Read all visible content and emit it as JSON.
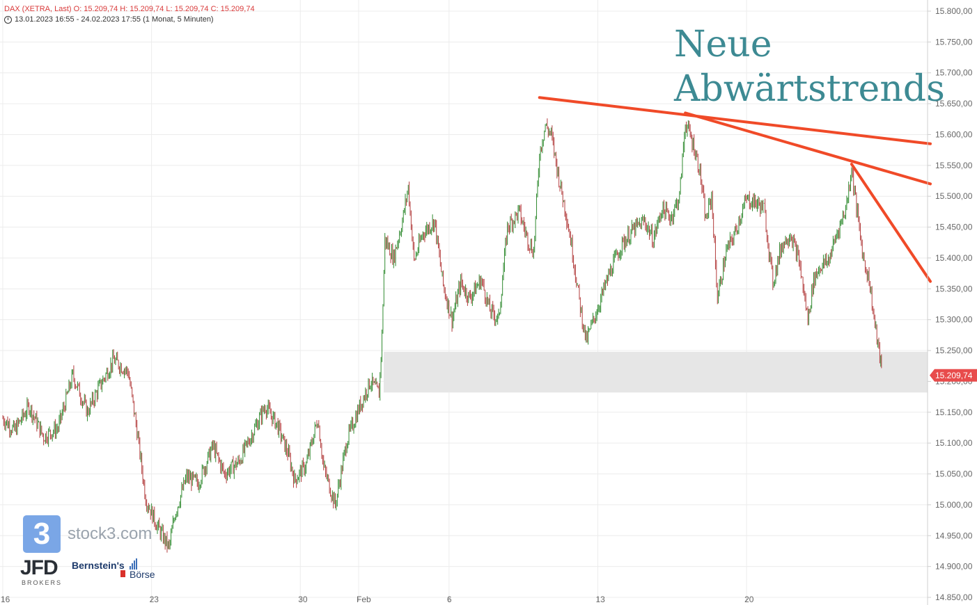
{
  "header": {
    "line1": "DAX (XETRA, Last)  O: 15.209,74  H: 15.209,74  L: 15.209,74  C: 15.209,74",
    "line2": "13.01.2023 16:55 - 24.02.2023 17:55   (1 Monat, 5 Minuten)"
  },
  "annotation": {
    "line1": "Neue",
    "line2": "Abwärtstrends"
  },
  "logos": {
    "stock3_mark": "3",
    "stock3_text": "stock3.com",
    "jfd": "JFD",
    "jfd_sub": "BROKERS",
    "bernstein": "Bernstein's",
    "boerse": "Börse"
  },
  "colors": {
    "up": "#2f8a2f",
    "down": "#b23c3c",
    "trend": "#f04a28",
    "zone": "#e6e6e6",
    "price_tag": "#e84c4c",
    "annotation": "#3d8a93"
  },
  "chart_data": {
    "type": "line",
    "ylim": [
      14850,
      15800
    ],
    "y_ticks": [
      "15.800,00",
      "15.750,00",
      "15.700,00",
      "15.650,00",
      "15.600,00",
      "15.550,00",
      "15.500,00",
      "15.450,00",
      "15.400,00",
      "15.350,00",
      "15.300,00",
      "15.250,00",
      "15.200,00",
      "15.150,00",
      "15.100,00",
      "15.050,00",
      "15.000,00",
      "14.950,00",
      "14.900,00",
      "14.850,00"
    ],
    "y_tick_values": [
      15800,
      15750,
      15700,
      15650,
      15600,
      15550,
      15500,
      15450,
      15400,
      15350,
      15300,
      15250,
      15200,
      15150,
      15100,
      15050,
      15000,
      14950,
      14900,
      14850
    ],
    "x_ticks": [
      {
        "label": "16",
        "t": 0
      },
      {
        "label": "23",
        "t": 5.1
      },
      {
        "label": "30",
        "t": 10.2
      },
      {
        "label": "Feb",
        "t": 12.2
      },
      {
        "label": "6",
        "t": 15.3
      },
      {
        "label": "13",
        "t": 20.4
      },
      {
        "label": "20",
        "t": 25.5
      }
    ],
    "last_price": "15.209,74",
    "last_value": 15209.74,
    "support_zone": [
      15182,
      15248
    ],
    "series": [
      {
        "values": [
          [
            0,
            15140
          ],
          [
            0.4,
            15120
          ],
          [
            0.9,
            15160
          ],
          [
            1.4,
            15110
          ],
          [
            1.9,
            15125
          ],
          [
            2.4,
            15210
          ],
          [
            2.9,
            15150
          ],
          [
            3.3,
            15190
          ],
          [
            3.8,
            15235
          ],
          [
            4.3,
            15215
          ],
          [
            4.6,
            15120
          ],
          [
            4.9,
            15010
          ],
          [
            5.3,
            14965
          ],
          [
            5.7,
            14930
          ],
          [
            5.9,
            14985
          ],
          [
            6.3,
            15045
          ],
          [
            6.7,
            15035
          ],
          [
            7.2,
            15095
          ],
          [
            7.6,
            15050
          ],
          [
            8.1,
            15070
          ],
          [
            8.5,
            15110
          ],
          [
            9.0,
            15160
          ],
          [
            9.4,
            15130
          ],
          [
            9.8,
            15080
          ],
          [
            10.0,
            15040
          ],
          [
            10.4,
            15065
          ],
          [
            10.8,
            15140
          ],
          [
            11.0,
            15060
          ],
          [
            11.4,
            15000
          ],
          [
            11.8,
            15105
          ],
          [
            12.2,
            15155
          ],
          [
            12.6,
            15200
          ],
          [
            12.9,
            15180
          ],
          [
            13.0,
            15275
          ],
          [
            13.1,
            15430
          ],
          [
            13.4,
            15400
          ],
          [
            13.7,
            15460
          ],
          [
            13.9,
            15515
          ],
          [
            14.1,
            15395
          ],
          [
            14.4,
            15440
          ],
          [
            14.8,
            15460
          ],
          [
            15.1,
            15355
          ],
          [
            15.4,
            15300
          ],
          [
            15.7,
            15360
          ],
          [
            16.0,
            15335
          ],
          [
            16.4,
            15365
          ],
          [
            16.7,
            15315
          ],
          [
            17.0,
            15300
          ],
          [
            17.3,
            15450
          ],
          [
            17.7,
            15475
          ],
          [
            18.0,
            15430
          ],
          [
            18.2,
            15410
          ],
          [
            18.4,
            15570
          ],
          [
            18.6,
            15615
          ],
          [
            18.8,
            15600
          ],
          [
            19.1,
            15520
          ],
          [
            19.3,
            15475
          ],
          [
            19.5,
            15420
          ],
          [
            19.8,
            15320
          ],
          [
            20.0,
            15265
          ],
          [
            20.4,
            15320
          ],
          [
            20.8,
            15375
          ],
          [
            21.2,
            15420
          ],
          [
            21.6,
            15445
          ],
          [
            22.0,
            15460
          ],
          [
            22.3,
            15430
          ],
          [
            22.6,
            15480
          ],
          [
            22.9,
            15465
          ],
          [
            23.2,
            15500
          ],
          [
            23.4,
            15620
          ],
          [
            23.7,
            15580
          ],
          [
            23.9,
            15540
          ],
          [
            24.1,
            15460
          ],
          [
            24.3,
            15500
          ],
          [
            24.5,
            15335
          ],
          [
            24.8,
            15410
          ],
          [
            25.1,
            15440
          ],
          [
            25.3,
            15470
          ],
          [
            25.5,
            15495
          ],
          [
            25.8,
            15490
          ],
          [
            26.1,
            15480
          ],
          [
            26.4,
            15360
          ],
          [
            26.7,
            15420
          ],
          [
            27.0,
            15440
          ],
          [
            27.3,
            15395
          ],
          [
            27.6,
            15300
          ],
          [
            27.8,
            15365
          ],
          [
            28.0,
            15385
          ],
          [
            28.3,
            15395
          ],
          [
            28.6,
            15440
          ],
          [
            28.9,
            15480
          ],
          [
            29.1,
            15545
          ],
          [
            29.3,
            15470
          ],
          [
            29.5,
            15400
          ],
          [
            29.7,
            15365
          ],
          [
            29.9,
            15290
          ],
          [
            30.1,
            15230
          ],
          [
            30.15,
            15209.74
          ]
        ]
      }
    ],
    "trendlines": [
      {
        "from": [
          18.4,
          15660
        ],
        "to": [
          31.8,
          15585
        ]
      },
      {
        "from": [
          23.4,
          15635
        ],
        "to": [
          31.8,
          15520
        ]
      },
      {
        "from": [
          29.1,
          15552
        ],
        "to": [
          31.8,
          15362
        ]
      }
    ]
  }
}
